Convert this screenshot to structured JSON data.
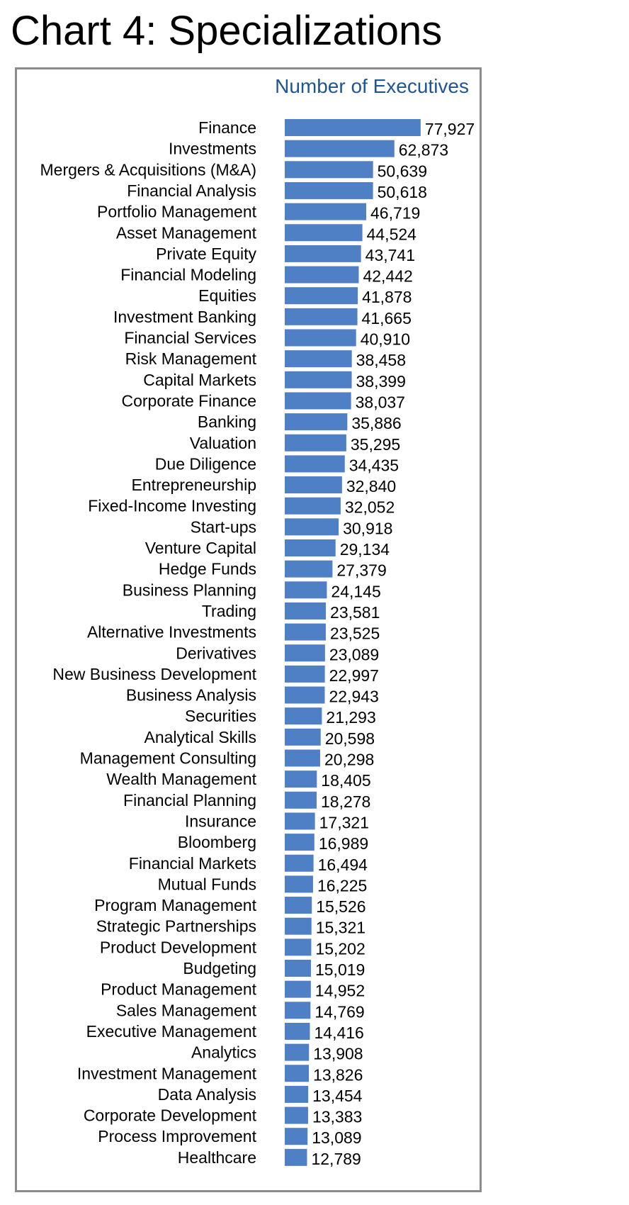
{
  "page": {
    "title": "Chart 4: Specializations"
  },
  "colors": {
    "bar": "#4f7fc5",
    "series_title": "#1f5591",
    "frame": "#8c8c8c",
    "text": "#000000"
  },
  "chart_data": {
    "type": "bar",
    "orientation": "horizontal",
    "title": "",
    "xlabel": "",
    "ylabel": "",
    "legend": "top-right",
    "grid": false,
    "xlim": [
      0,
      78000
    ],
    "series": [
      {
        "name": "Number of Executives",
        "values": [
          77927,
          62873,
          50639,
          50618,
          46719,
          44524,
          43741,
          42442,
          41878,
          41665,
          40910,
          38458,
          38399,
          38037,
          35886,
          35295,
          34435,
          32840,
          32052,
          30918,
          29134,
          27379,
          24145,
          23581,
          23525,
          23089,
          22997,
          22943,
          21293,
          20598,
          20298,
          18405,
          18278,
          17321,
          16989,
          16494,
          16225,
          15526,
          15321,
          15202,
          15019,
          14952,
          14769,
          14416,
          13908,
          13826,
          13454,
          13383,
          13089,
          12789
        ]
      }
    ],
    "categories": [
      "Finance",
      "Investments",
      "Mergers & Acquisitions (M&A)",
      "Financial Analysis",
      "Portfolio Management",
      "Asset Management",
      "Private Equity",
      "Financial Modeling",
      "Equities",
      "Investment Banking",
      "Financial Services",
      "Risk Management",
      "Capital Markets",
      "Corporate Finance",
      "Banking",
      "Valuation",
      "Due Diligence",
      "Entrepreneurship",
      "Fixed-Income Investing",
      "Start-ups",
      "Venture Capital",
      "Hedge Funds",
      "Business Planning",
      "Trading",
      "Alternative Investments",
      "Derivatives",
      "New Business Development",
      "Business Analysis",
      "Securities",
      "Analytical Skills",
      "Management Consulting",
      "Wealth Management",
      "Financial Planning",
      "Insurance",
      "Bloomberg",
      "Financial Markets",
      "Mutual Funds",
      "Program Management",
      "Strategic Partnerships",
      "Product Development",
      "Budgeting",
      "Product Management",
      "Sales Management",
      "Executive Management",
      "Analytics",
      "Investment Management",
      "Data Analysis",
      "Corporate Development",
      "Process Improvement",
      "Healthcare"
    ],
    "value_labels": [
      "77,927",
      "62,873",
      "50,639",
      "50,618",
      "46,719",
      "44,524",
      "43,741",
      "42,442",
      "41,878",
      "41,665",
      "40,910",
      "38,458",
      "38,399",
      "38,037",
      "35,886",
      "35,295",
      "34,435",
      "32,840",
      "32,052",
      "30,918",
      "29,134",
      "27,379",
      "24,145",
      "23,581",
      "23,525",
      "23,089",
      "22,997",
      "22,943",
      "21,293",
      "20,598",
      "20,298",
      "18,405",
      "18,278",
      "17,321",
      "16,989",
      "16,494",
      "16,225",
      "15,526",
      "15,321",
      "15,202",
      "15,019",
      "14,952",
      "14,769",
      "14,416",
      "13,908",
      "13,826",
      "13,454",
      "13,383",
      "13,089",
      "12,789"
    ]
  }
}
